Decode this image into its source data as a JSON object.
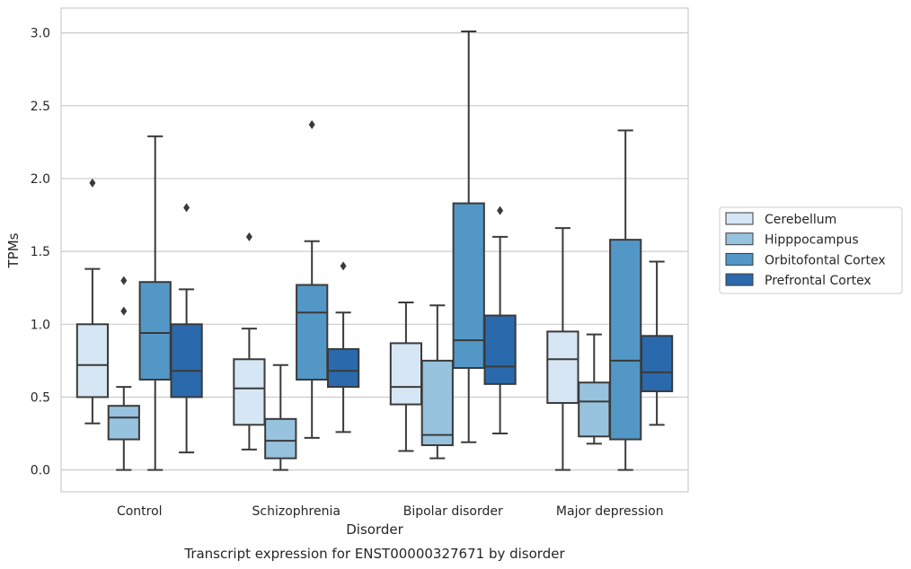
{
  "chart_data": {
    "type": "box",
    "caption": "Transcript expression for ENST00000327671 by disorder",
    "xlabel": "Disorder",
    "ylabel": "TPMs",
    "ylim": [
      -0.15,
      3.17
    ],
    "yticks": [
      "0.0",
      "0.5",
      "1.0",
      "1.5",
      "2.0",
      "2.5",
      "3.0"
    ],
    "grid": true,
    "legend_position": "right",
    "categories": [
      "Control",
      "Schizophrenia",
      "Bipolar disorder",
      "Major depression"
    ],
    "series": [
      {
        "name": "Cerebellum",
        "color": "#d6e6f4",
        "boxes": [
          {
            "whislo": 0.32,
            "q1": 0.5,
            "med": 0.72,
            "q3": 1.0,
            "whishi": 1.38,
            "fliers": [
              1.97
            ]
          },
          {
            "whislo": 0.14,
            "q1": 0.31,
            "med": 0.56,
            "q3": 0.76,
            "whishi": 0.97,
            "fliers": [
              1.6
            ]
          },
          {
            "whislo": 0.13,
            "q1": 0.45,
            "med": 0.57,
            "q3": 0.87,
            "whishi": 1.15,
            "fliers": []
          },
          {
            "whislo": 0.0,
            "q1": 0.46,
            "med": 0.76,
            "q3": 0.95,
            "whishi": 1.66,
            "fliers": []
          }
        ]
      },
      {
        "name": "Hipppocampus",
        "color": "#98c3de",
        "boxes": [
          {
            "whislo": 0.0,
            "q1": 0.21,
            "med": 0.36,
            "q3": 0.44,
            "whishi": 0.57,
            "fliers": [
              1.09,
              1.3
            ]
          },
          {
            "whislo": 0.0,
            "q1": 0.08,
            "med": 0.2,
            "q3": 0.35,
            "whishi": 0.72,
            "fliers": []
          },
          {
            "whislo": 0.08,
            "q1": 0.17,
            "med": 0.24,
            "q3": 0.75,
            "whishi": 1.13,
            "fliers": []
          },
          {
            "whislo": 0.18,
            "q1": 0.23,
            "med": 0.47,
            "q3": 0.6,
            "whishi": 0.93,
            "fliers": []
          }
        ]
      },
      {
        "name": "Orbitofontal Cortex",
        "color": "#5397c6",
        "boxes": [
          {
            "whislo": 0.0,
            "q1": 0.62,
            "med": 0.94,
            "q3": 1.29,
            "whishi": 2.29,
            "fliers": []
          },
          {
            "whislo": 0.22,
            "q1": 0.62,
            "med": 1.08,
            "q3": 1.27,
            "whishi": 1.57,
            "fliers": [
              2.37
            ]
          },
          {
            "whislo": 0.19,
            "q1": 0.7,
            "med": 0.89,
            "q3": 1.83,
            "whishi": 3.01,
            "fliers": []
          },
          {
            "whislo": 0.0,
            "q1": 0.21,
            "med": 0.75,
            "q3": 1.58,
            "whishi": 2.33,
            "fliers": []
          }
        ]
      },
      {
        "name": "Prefrontal Cortex",
        "color": "#2a6aac",
        "boxes": [
          {
            "whislo": 0.12,
            "q1": 0.5,
            "med": 0.68,
            "q3": 1.0,
            "whishi": 1.24,
            "fliers": [
              1.8
            ]
          },
          {
            "whislo": 0.26,
            "q1": 0.57,
            "med": 0.68,
            "q3": 0.83,
            "whishi": 1.08,
            "fliers": [
              1.4
            ]
          },
          {
            "whislo": 0.25,
            "q1": 0.59,
            "med": 0.71,
            "q3": 1.06,
            "whishi": 1.6,
            "fliers": [
              1.78
            ]
          },
          {
            "whislo": 0.31,
            "q1": 0.54,
            "med": 0.67,
            "q3": 0.92,
            "whishi": 1.43,
            "fliers": []
          }
        ]
      }
    ]
  }
}
